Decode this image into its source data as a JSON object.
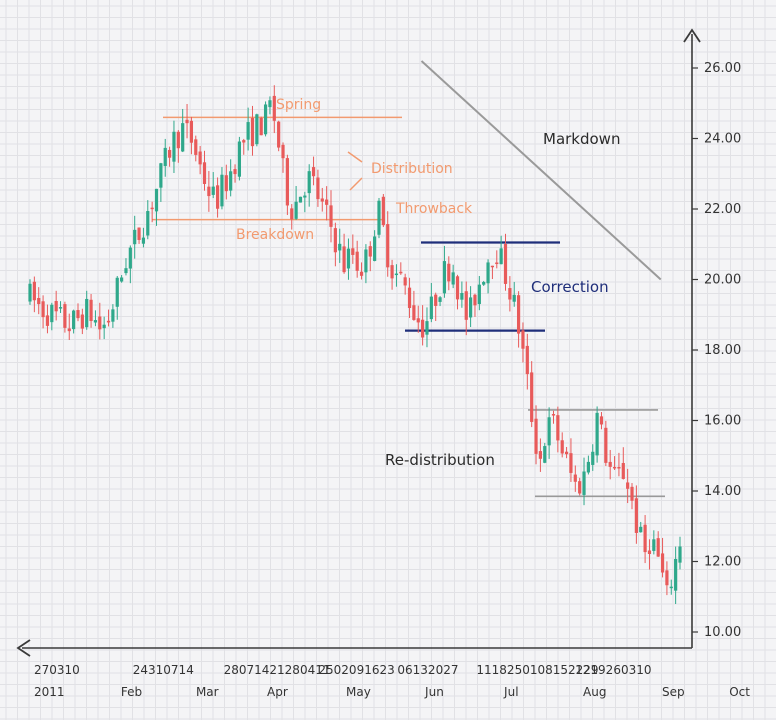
{
  "chart_data": {
    "type": "candlestick",
    "colors": {
      "background": "#F4F4F6",
      "grid": "#E1E1E5",
      "axis": "#3A3A3A",
      "up": "#2FA88B",
      "down": "#E85A5A",
      "annotation_orange": "#F29A6F",
      "annotation_navy": "#1F2E7A",
      "annotation_gray": "#999999"
    },
    "y_axis": {
      "min": 10,
      "max": 26,
      "ticks": [
        "10.00",
        "12.00",
        "14.00",
        "16.00",
        "18.00",
        "20.00",
        "22.00",
        "24.00",
        "26.00"
      ],
      "position": "right"
    },
    "x_axis": {
      "day_labels": [
        {
          "label": "270310",
          "x": 0
        },
        {
          "label": "24310714",
          "x": 1.25
        },
        {
          "label": "28071421280411",
          "x": 2.4
        },
        {
          "label": "2502091623",
          "x": 3.6
        },
        {
          "label": "06132027",
          "x": 4.6
        },
        {
          "label": "1118250108152229",
          "x": 5.6
        },
        {
          "label": "1219260310",
          "x": 6.85
        }
      ],
      "month_labels": [
        {
          "label": "2011",
          "x": 0
        },
        {
          "label": "Feb",
          "x": 1.1
        },
        {
          "label": "Mar",
          "x": 2.05
        },
        {
          "label": "Apr",
          "x": 2.95
        },
        {
          "label": "May",
          "x": 3.95
        },
        {
          "label": "Jun",
          "x": 4.95
        },
        {
          "label": "Jul",
          "x": 5.95
        },
        {
          "label": "Aug",
          "x": 6.95
        },
        {
          "label": "Sep",
          "x": 7.95
        },
        {
          "label": "Oct",
          "x": 8.8
        }
      ]
    },
    "annotations": [
      {
        "label": "Spring",
        "color": "orange"
      },
      {
        "label": "Distribution",
        "color": "orange"
      },
      {
        "label": "Throwback",
        "color": "orange"
      },
      {
        "label": "Breakdown",
        "color": "orange"
      },
      {
        "label": "Markdown",
        "color": "dark"
      },
      {
        "label": "Correction",
        "color": "navy"
      },
      {
        "label": "Re-distribution",
        "color": "dark"
      }
    ],
    "levels": [
      {
        "name": "spring",
        "y": 24.6
      },
      {
        "name": "breakdown",
        "y": 21.7
      },
      {
        "name": "correction_top",
        "y": 21.05
      },
      {
        "name": "correction_bottom",
        "y": 18.55
      },
      {
        "name": "redistribution_top",
        "y": 16.3
      },
      {
        "name": "redistribution_bottom",
        "y": 13.85
      }
    ],
    "trend": {
      "name": "markdown",
      "from": [
        5.4,
        26.2
      ],
      "to": [
        8.7,
        20.0
      ]
    },
    "price_path": [
      [
        0.0,
        19.5
      ],
      [
        0.15,
        19.2
      ],
      [
        0.3,
        19.0
      ],
      [
        0.45,
        18.8
      ],
      [
        0.55,
        18.7
      ],
      [
        0.7,
        19.0
      ],
      [
        0.8,
        19.1
      ],
      [
        0.95,
        18.6
      ],
      [
        1.05,
        18.8
      ],
      [
        1.15,
        19.5
      ],
      [
        1.3,
        20.6
      ],
      [
        1.45,
        21.2
      ],
      [
        1.6,
        22.0
      ],
      [
        1.75,
        22.8
      ],
      [
        1.9,
        23.8
      ],
      [
        2.05,
        24.3
      ],
      [
        2.2,
        23.9
      ],
      [
        2.3,
        23.2
      ],
      [
        2.4,
        22.6
      ],
      [
        2.5,
        22.2
      ],
      [
        2.6,
        22.6
      ],
      [
        2.7,
        23.0
      ],
      [
        2.8,
        23.6
      ],
      [
        2.9,
        24.0
      ],
      [
        3.0,
        24.2
      ],
      [
        3.1,
        24.4
      ],
      [
        3.2,
        24.6
      ],
      [
        3.25,
        25.0
      ],
      [
        3.32,
        24.4
      ],
      [
        3.38,
        23.5
      ],
      [
        3.45,
        22.6
      ],
      [
        3.55,
        22.0
      ],
      [
        3.65,
        22.5
      ],
      [
        3.75,
        22.9
      ],
      [
        3.85,
        22.6
      ],
      [
        3.95,
        22.0
      ],
      [
        4.05,
        21.6
      ],
      [
        4.15,
        21.0
      ],
      [
        4.25,
        20.4
      ],
      [
        4.35,
        20.8
      ],
      [
        4.45,
        20.3
      ],
      [
        4.55,
        20.6
      ],
      [
        4.62,
        21.2
      ],
      [
        4.7,
        22.0
      ],
      [
        4.78,
        21.3
      ],
      [
        4.85,
        20.6
      ],
      [
        4.92,
        20.2
      ],
      [
        5.0,
        20.0
      ],
      [
        5.1,
        19.6
      ],
      [
        5.2,
        19.0
      ],
      [
        5.3,
        18.7
      ],
      [
        5.4,
        19.0
      ],
      [
        5.5,
        19.7
      ],
      [
        5.6,
        20.2
      ],
      [
        5.7,
        20.5
      ],
      [
        5.78,
        19.8
      ],
      [
        5.85,
        19.2
      ],
      [
        5.92,
        18.8
      ],
      [
        6.0,
        19.5
      ],
      [
        6.1,
        20.1
      ],
      [
        6.2,
        20.7
      ],
      [
        6.3,
        20.9
      ],
      [
        6.4,
        20.3
      ],
      [
        6.5,
        19.6
      ],
      [
        6.58,
        18.9
      ],
      [
        6.65,
        18.0
      ],
      [
        6.72,
        17.0
      ],
      [
        6.8,
        15.8
      ],
      [
        6.88,
        14.8
      ],
      [
        6.95,
        15.5
      ],
      [
        7.05,
        16.0
      ],
      [
        7.12,
        15.6
      ],
      [
        7.2,
        15.1
      ],
      [
        7.28,
        14.6
      ],
      [
        7.38,
        14.1
      ],
      [
        7.48,
        14.4
      ],
      [
        7.58,
        15.3
      ],
      [
        7.66,
        16.1
      ],
      [
        7.74,
        15.4
      ],
      [
        7.82,
        14.7
      ],
      [
        7.9,
        14.3
      ],
      [
        8.0,
        14.6
      ],
      [
        8.08,
        14.2
      ],
      [
        8.15,
        13.5
      ],
      [
        8.22,
        12.8
      ],
      [
        8.3,
        12.2
      ],
      [
        8.38,
        12.7
      ],
      [
        8.46,
        12.3
      ],
      [
        8.54,
        11.6
      ],
      [
        8.6,
        10.9
      ],
      [
        8.66,
        11.5
      ],
      [
        8.72,
        12.0
      ],
      [
        8.78,
        12.6
      ]
    ]
  }
}
